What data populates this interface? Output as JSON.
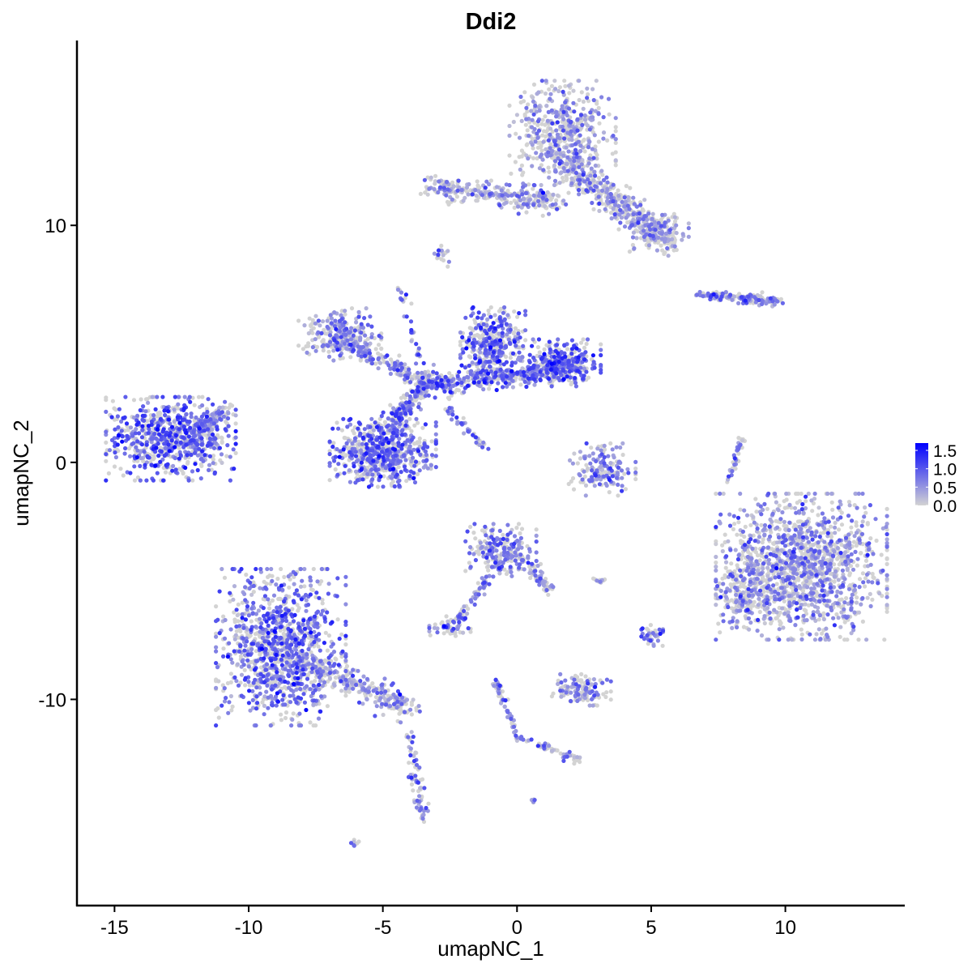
{
  "chart_data": {
    "type": "scatter",
    "title": "Ddi2",
    "xlabel": "umapNC_1",
    "ylabel": "umapNC_2",
    "xlim": [
      -16.4,
      14.45
    ],
    "ylim": [
      -18.7,
      17.8
    ],
    "xticks": [
      -15,
      -10,
      -5,
      0,
      5,
      10
    ],
    "xtick_labels": [
      "-15",
      "-10",
      "-5",
      "0",
      "5",
      "10"
    ],
    "yticks": [
      -10,
      0,
      10
    ],
    "ytick_labels": [
      "-10",
      "0",
      "10"
    ],
    "grid": false,
    "legend": {
      "placement": "right",
      "type": "colorbar",
      "ticks": [
        0.0,
        0.5,
        1.0,
        1.5
      ],
      "tick_labels": [
        "0.0",
        "0.5",
        "1.0",
        "1.5"
      ],
      "range": [
        0,
        1.7
      ],
      "low_color": "#D3D3D3",
      "high_color": "#0000FF"
    },
    "clusters": [
      {
        "shape": "blob",
        "x": -12.9,
        "y": 1.0,
        "sx": 1.1,
        "sy": 0.8,
        "n": 700,
        "expr": 0.85
      },
      {
        "shape": "line",
        "x": -12.0,
        "y": 1.2,
        "x2": -10.8,
        "y2": 2.3,
        "w": 0.35,
        "n": 120,
        "expr": 0.6
      },
      {
        "shape": "blob",
        "x": -8.8,
        "y": -7.8,
        "sx": 1.1,
        "sy": 1.5,
        "n": 1100,
        "expr": 0.75
      },
      {
        "shape": "line",
        "x": -7.8,
        "y": -8.5,
        "x2": -4.0,
        "y2": -10.4,
        "w": 0.5,
        "n": 250,
        "expr": 0.45
      },
      {
        "shape": "line",
        "x": -4.0,
        "y": -11.5,
        "x2": -3.5,
        "y2": -15.2,
        "w": 0.25,
        "n": 70,
        "expr": 0.5
      },
      {
        "shape": "blob",
        "x": -5.0,
        "y": 0.4,
        "sx": 0.9,
        "sy": 0.65,
        "n": 600,
        "expr": 0.8
      },
      {
        "shape": "line",
        "x": -5.0,
        "y": 1.2,
        "x2": -3.3,
        "y2": 3.5,
        "w": 0.45,
        "n": 200,
        "expr": 0.7
      },
      {
        "shape": "blob",
        "x": -6.6,
        "y": 5.4,
        "sx": 0.7,
        "sy": 0.5,
        "n": 250,
        "expr": 0.55
      },
      {
        "shape": "line",
        "x": -6.2,
        "y": 5.0,
        "x2": -3.3,
        "y2": 3.3,
        "w": 0.35,
        "n": 150,
        "expr": 0.55
      },
      {
        "shape": "line",
        "x": -3.3,
        "y": 3.2,
        "x2": 1.9,
        "y2": 4.0,
        "w": 0.45,
        "n": 400,
        "expr": 0.75
      },
      {
        "shape": "blob",
        "x": -0.9,
        "y": 5.0,
        "sx": 0.55,
        "sy": 0.7,
        "n": 350,
        "expr": 0.85
      },
      {
        "shape": "blob",
        "x": 1.8,
        "y": 4.2,
        "sx": 0.6,
        "sy": 0.45,
        "n": 250,
        "expr": 0.9
      },
      {
        "shape": "line",
        "x": -3.3,
        "y": 3.2,
        "x2": -4.4,
        "y2": 7.3,
        "w": 0.15,
        "n": 40,
        "expr": 0.7
      },
      {
        "shape": "line",
        "x": -2.6,
        "y": 2.3,
        "x2": -1.2,
        "y2": 0.6,
        "w": 0.15,
        "n": 40,
        "expr": 0.6
      },
      {
        "shape": "blob",
        "x": 1.7,
        "y": 13.9,
        "sx": 0.9,
        "sy": 1.0,
        "n": 500,
        "expr": 0.4
      },
      {
        "shape": "line",
        "x": -3.2,
        "y": 11.6,
        "x2": 1.5,
        "y2": 11.0,
        "w": 0.45,
        "n": 300,
        "expr": 0.4
      },
      {
        "shape": "line",
        "x": 1.8,
        "y": 12.5,
        "x2": 5.4,
        "y2": 9.6,
        "w": 0.6,
        "n": 400,
        "expr": 0.35
      },
      {
        "shape": "blob",
        "x": 5.3,
        "y": 9.6,
        "sx": 0.5,
        "sy": 0.4,
        "n": 120,
        "expr": 0.4
      },
      {
        "shape": "blob",
        "x": 10.6,
        "y": -4.4,
        "sx": 1.45,
        "sy": 1.4,
        "n": 1400,
        "expr": 0.45
      },
      {
        "shape": "blob",
        "x": 8.4,
        "y": -5.5,
        "sx": 0.45,
        "sy": 0.7,
        "n": 150,
        "expr": 0.5
      },
      {
        "shape": "blob",
        "x": -0.6,
        "y": -3.7,
        "sx": 0.6,
        "sy": 0.5,
        "n": 200,
        "expr": 0.65
      },
      {
        "shape": "line",
        "x": -0.6,
        "y": -4.2,
        "x2": -2.3,
        "y2": -6.8,
        "w": 0.2,
        "n": 70,
        "expr": 0.6
      },
      {
        "shape": "blob",
        "x": -2.5,
        "y": -6.9,
        "sx": 0.35,
        "sy": 0.2,
        "n": 50,
        "expr": 0.6
      },
      {
        "shape": "line",
        "x": 0.3,
        "y": -4.0,
        "x2": 1.2,
        "y2": -5.4,
        "w": 0.25,
        "n": 60,
        "expr": 0.5
      },
      {
        "shape": "blob",
        "x": 3.1,
        "y": -0.3,
        "sx": 0.6,
        "sy": 0.5,
        "n": 160,
        "expr": 0.6
      },
      {
        "shape": "line",
        "x": 6.8,
        "y": 7.1,
        "x2": 9.8,
        "y2": 6.8,
        "w": 0.2,
        "n": 150,
        "expr": 0.6
      },
      {
        "shape": "line",
        "x": 8.4,
        "y": 1.0,
        "x2": 7.8,
        "y2": -1.0,
        "w": 0.12,
        "n": 40,
        "expr": 0.6
      },
      {
        "shape": "blob",
        "x": 2.4,
        "y": -9.6,
        "sx": 0.5,
        "sy": 0.3,
        "n": 120,
        "expr": 0.55
      },
      {
        "shape": "line",
        "x": -0.8,
        "y": -9.2,
        "x2": 0.0,
        "y2": -11.5,
        "w": 0.15,
        "n": 50,
        "expr": 0.5
      },
      {
        "shape": "line",
        "x": 0.0,
        "y": -11.6,
        "x2": 2.4,
        "y2": -12.6,
        "w": 0.15,
        "n": 60,
        "expr": 0.5
      },
      {
        "shape": "blob",
        "x": 5.0,
        "y": -7.3,
        "sx": 0.2,
        "sy": 0.2,
        "n": 40,
        "expr": 0.5
      },
      {
        "shape": "blob",
        "x": -2.8,
        "y": 8.7,
        "sx": 0.15,
        "sy": 0.2,
        "n": 20,
        "expr": 0.5
      },
      {
        "shape": "blob",
        "x": -6.0,
        "y": -16.1,
        "sx": 0.1,
        "sy": 0.08,
        "n": 8,
        "expr": 0.5
      },
      {
        "shape": "blob",
        "x": 0.6,
        "y": -14.3,
        "sx": 0.08,
        "sy": 0.08,
        "n": 6,
        "expr": 0.6
      },
      {
        "shape": "blob",
        "x": 3.0,
        "y": -5.0,
        "sx": 0.2,
        "sy": 0.08,
        "n": 10,
        "expr": 0.4
      }
    ]
  }
}
